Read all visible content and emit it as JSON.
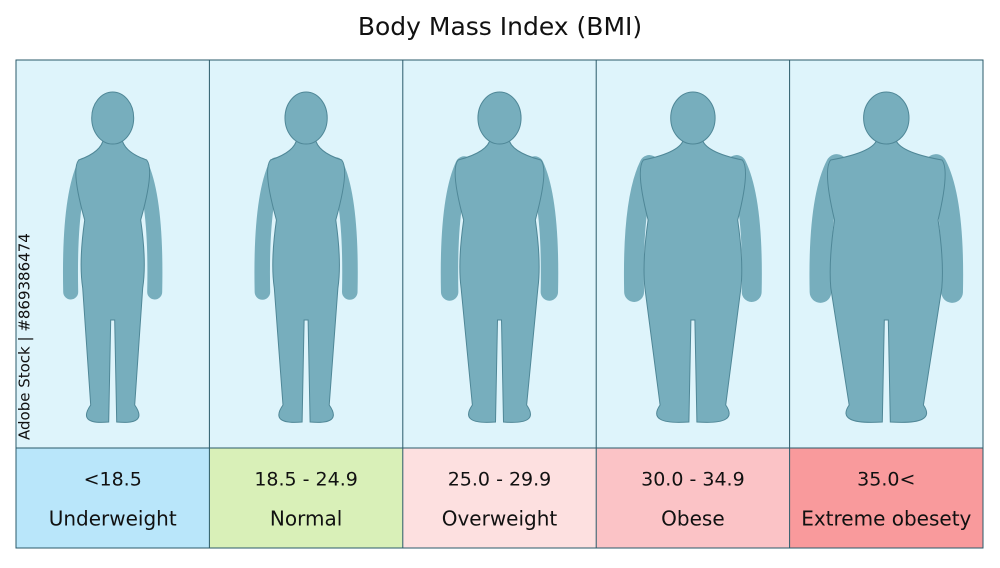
{
  "title": "Body Mass Index (BMI)",
  "watermark": "Adobe Stock | #869386474",
  "columns": [
    {
      "range": "<18.5",
      "label": "Underweight"
    },
    {
      "range": "18.5 - 24.9",
      "label": "Normal"
    },
    {
      "range": "25.0 - 29.9",
      "label": "Overweight"
    },
    {
      "range": "30.0 - 34.9",
      "label": "Obese"
    },
    {
      "range": "35.0<",
      "label": "Extreme obesety"
    }
  ]
}
